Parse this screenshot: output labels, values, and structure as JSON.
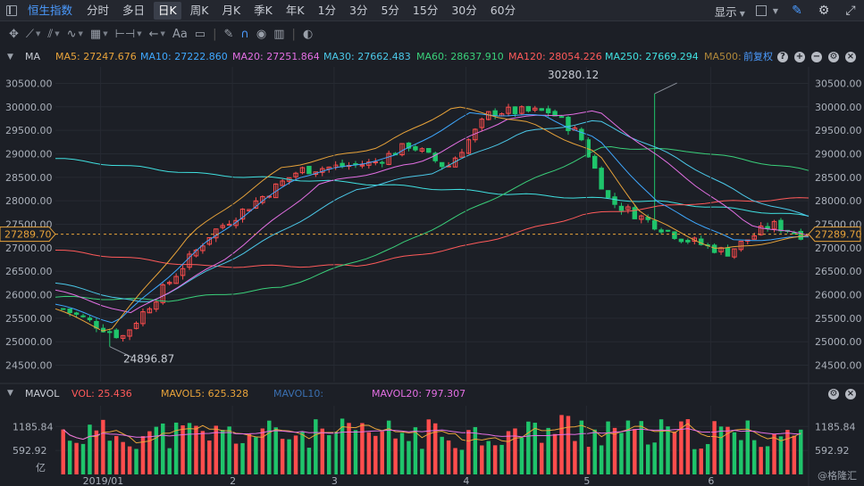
{
  "toolbar": {
    "index_name": "恒生指数",
    "tabs": [
      "分时",
      "多日",
      "日K",
      "周K",
      "月K",
      "季K",
      "年K",
      "1分",
      "3分",
      "5分",
      "15分",
      "30分",
      "60分"
    ],
    "active_tab": "日K",
    "display_label": "显示",
    "draw_tools": [
      "crosshair-icon",
      "line-icon",
      "ray-icon",
      "wave-icon",
      "grid-icon",
      "measure-icon",
      "arrow-icon",
      "text-icon",
      "note-icon",
      "pen-icon",
      "magnet-icon",
      "eye-icon",
      "trash-icon",
      "toggle-icon"
    ],
    "text_tool_label": "Aa"
  },
  "ma_bar": {
    "label": "MA",
    "items": [
      {
        "text": "MA5: 27247.676",
        "color": "#e8a33a"
      },
      {
        "text": "MA10: 27222.860",
        "color": "#3fa8ff"
      },
      {
        "text": "MA20: 27251.864",
        "color": "#e36fe3"
      },
      {
        "text": "MA30: 27662.483",
        "color": "#4bc8e8"
      },
      {
        "text": "MA60: 28637.910",
        "color": "#3ad07a"
      },
      {
        "text": "MA120: 28054.226",
        "color": "#ff5a5a"
      },
      {
        "text": "MA250: 27669.294",
        "color": "#40e0e0"
      },
      {
        "text": "MA500:",
        "color": "#b0883a"
      }
    ],
    "adjust_label": "前复权"
  },
  "vol_bar": {
    "label": "MAVOL",
    "items": [
      {
        "text": "VOL: 25.436",
        "color": "#ff5a5a"
      },
      {
        "text": "MAVOL5: 625.328",
        "color": "#e8a33a"
      },
      {
        "text": "MAVOL10:",
        "color": "#3a6fb0"
      },
      {
        "text": "MAVOL20: 797.307",
        "color": "#e36fe3"
      }
    ]
  },
  "price_axis": {
    "ticks": [
      "30500.00",
      "30000.00",
      "29500.00",
      "29000.00",
      "28500.00",
      "28000.00",
      "27500.00",
      "27000.00",
      "26500.00",
      "26000.00",
      "25500.00",
      "25000.00",
      "24500.00"
    ]
  },
  "volume_axis": {
    "ticks": [
      "1185.84",
      "592.92"
    ],
    "unit": "亿"
  },
  "time_axis": {
    "labels": [
      "2019/01",
      "2",
      "3",
      "4",
      "5",
      "6"
    ]
  },
  "annotations": {
    "high": "30280.12",
    "low": "24896.87",
    "last_price": "27289.70"
  },
  "colors": {
    "up": "#ff4d4d",
    "down": "#1fc46b",
    "background": "#1c1f26"
  },
  "watermark": "@格隆汇",
  "chart_data": {
    "type": "line",
    "price_range": [
      24150,
      30850
    ],
    "last_price": 27289.7,
    "series": [
      {
        "name": "MA250",
        "color": "#40e0e0",
        "points": [
          [
            0,
            28900
          ],
          [
            0.2,
            28560
          ],
          [
            0.4,
            28380
          ],
          [
            0.6,
            28150
          ],
          [
            0.8,
            27980
          ],
          [
            1,
            27669
          ]
        ]
      },
      {
        "name": "MA120",
        "color": "#ff5a5a",
        "points": [
          [
            0,
            26950
          ],
          [
            0.2,
            26600
          ],
          [
            0.4,
            26620
          ],
          [
            0.55,
            27050
          ],
          [
            0.7,
            27700
          ],
          [
            0.85,
            27950
          ],
          [
            1,
            28054
          ]
        ]
      },
      {
        "name": "MA60",
        "color": "#3ad07a",
        "points": [
          [
            0,
            25950
          ],
          [
            0.15,
            25880
          ],
          [
            0.3,
            26150
          ],
          [
            0.45,
            27000
          ],
          [
            0.6,
            28200
          ],
          [
            0.73,
            29150
          ],
          [
            0.85,
            29050
          ],
          [
            1,
            28638
          ]
        ]
      },
      {
        "name": "MA30",
        "color": "#4bc8e8",
        "points": [
          [
            0,
            26250
          ],
          [
            0.12,
            25800
          ],
          [
            0.25,
            26900
          ],
          [
            0.4,
            28250
          ],
          [
            0.5,
            28600
          ],
          [
            0.62,
            29450
          ],
          [
            0.72,
            29700
          ],
          [
            0.82,
            28950
          ],
          [
            0.92,
            28050
          ],
          [
            1,
            27662
          ]
        ]
      },
      {
        "name": "MA20",
        "color": "#e36fe3",
        "points": [
          [
            0,
            26100
          ],
          [
            0.1,
            25600
          ],
          [
            0.22,
            26700
          ],
          [
            0.35,
            28350
          ],
          [
            0.48,
            28800
          ],
          [
            0.6,
            29750
          ],
          [
            0.72,
            29900
          ],
          [
            0.82,
            28700
          ],
          [
            0.92,
            27500
          ],
          [
            1,
            27252
          ]
        ]
      },
      {
        "name": "MA10",
        "color": "#3fa8ff",
        "points": [
          [
            0,
            25800
          ],
          [
            0.08,
            25400
          ],
          [
            0.2,
            27100
          ],
          [
            0.32,
            28500
          ],
          [
            0.45,
            28950
          ],
          [
            0.55,
            29850
          ],
          [
            0.65,
            29800
          ],
          [
            0.72,
            29300
          ],
          [
            0.8,
            27950
          ],
          [
            0.9,
            27150
          ],
          [
            1,
            27223
          ]
        ]
      },
      {
        "name": "MA5",
        "color": "#e8a33a",
        "points": [
          [
            0,
            25700
          ],
          [
            0.07,
            25200
          ],
          [
            0.18,
            27300
          ],
          [
            0.3,
            28700
          ],
          [
            0.43,
            29150
          ],
          [
            0.53,
            30000
          ],
          [
            0.63,
            29650
          ],
          [
            0.72,
            29000
          ],
          [
            0.78,
            27700
          ],
          [
            0.88,
            26950
          ],
          [
            1,
            27248
          ]
        ]
      }
    ],
    "candles": {
      "count": 112,
      "start": 25700,
      "high": 30280.12,
      "low": 24896.87,
      "end": 27289.7,
      "path": [
        [
          0,
          25700
        ],
        [
          0.08,
          25100
        ],
        [
          0.2,
          27300
        ],
        [
          0.32,
          28650
        ],
        [
          0.42,
          28800
        ],
        [
          0.47,
          29200
        ],
        [
          0.52,
          28700
        ],
        [
          0.58,
          29900
        ],
        [
          0.66,
          29900
        ],
        [
          0.7,
          29400
        ],
        [
          0.74,
          28000
        ],
        [
          0.84,
          27200
        ],
        [
          0.9,
          26900
        ],
        [
          0.96,
          27500
        ],
        [
          1,
          27290
        ]
      ]
    },
    "volume_range": [
      0,
      1700
    ],
    "volume": {
      "count": 112,
      "range_hint": [
        600,
        1650
      ]
    }
  }
}
